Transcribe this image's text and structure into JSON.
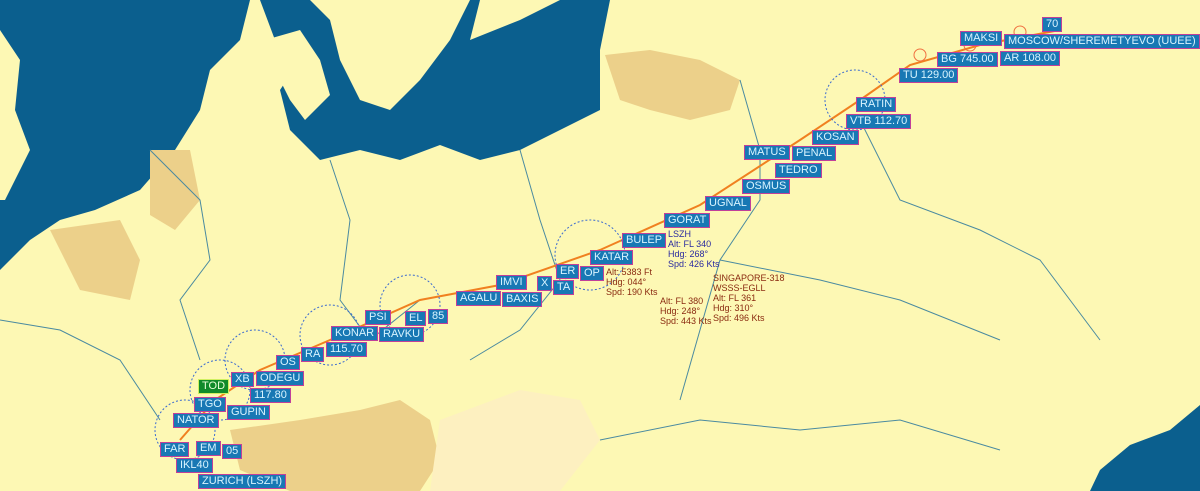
{
  "map": {
    "colors": {
      "sea": "#0b5f8e",
      "land": "#fdf8b4",
      "highlight_country": "#ecd08a",
      "route": "#f08020",
      "label_bg": "#1878b4",
      "label_border": "#c0409a",
      "tod_bg": "#118a2a"
    },
    "origin": "MOSCOW/SHEREMETYEVO (UUEE)",
    "destination": "ZURICH (LSZH)",
    "waypoints": [
      "70",
      "AR 108.00",
      "MAKSI",
      "BG 745.00",
      "TU 129.00",
      "RATIN",
      "VTB 112.70",
      "KOSAN",
      "PENAL",
      "TEDRO",
      "MATUS",
      "OSMUS",
      "UGNAL",
      "GORAT",
      "BULEP",
      "KATAR",
      "OP",
      "ER",
      "TA",
      "X",
      "BAXIS",
      "IMVI",
      "AGALU",
      "EL",
      "85",
      "RAVKU",
      "PSI",
      "KONAR",
      "115.70",
      "RA",
      "OS",
      "ODEGU",
      "117.80",
      "XB",
      "GUPIN",
      "TGO",
      "TOD",
      "NATOR",
      "FAR",
      "IKL40",
      "EM",
      "05"
    ],
    "flights": [
      {
        "lines": "LSZH\nAlt: FL 340\nHdg: 268°\nSpd: 426 Kts",
        "color": "blue"
      },
      {
        "lines": "Alt: 5383 Ft\nHdg: 044°\nSpd: 190 Kts",
        "color": "red"
      },
      {
        "lines": "Alt: FL 380\nHdg: 248°\nSpd: 443 Kts",
        "color": "red"
      },
      {
        "lines": "SINGAPORE-318\nWSSS-EGLL\nAlt: FL 361\nHdg: 310°\nSpd: 496 Kts",
        "color": "red"
      }
    ]
  }
}
